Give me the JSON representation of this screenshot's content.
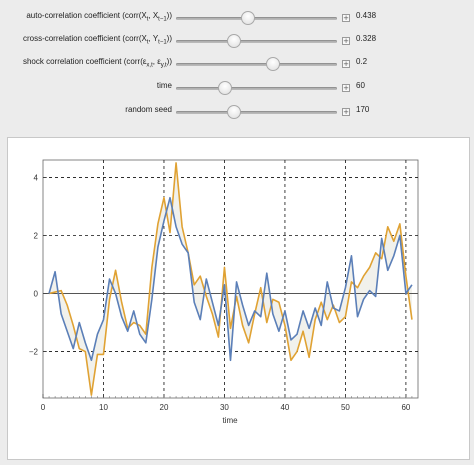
{
  "controls": [
    {
      "label_prefix": "auto-correlation coefficient (corr(X",
      "label_sub1": "t",
      "label_mid": ", X",
      "label_sub2": "t−1",
      "label_suffix": "))",
      "value": "0.438",
      "frac": 0.449
    },
    {
      "label_prefix": "cross-correlation coefficient (corr(X",
      "label_sub1": "t",
      "label_mid": ", Y",
      "label_sub2": "t−1",
      "label_suffix": "))",
      "value": "0.328",
      "frac": 0.363
    },
    {
      "label_prefix": "shock correlation coefficient (corr(ε",
      "label_sub1": "x,t",
      "label_mid": ", ε",
      "label_sub2": "y,t",
      "label_suffix": "))",
      "value": "0.2",
      "frac": 0.6
    },
    {
      "label_prefix": "time",
      "label_sub1": "",
      "label_mid": "",
      "label_sub2": "",
      "label_suffix": "",
      "value": "60",
      "frac": 0.306
    },
    {
      "label_prefix": "random seed",
      "label_sub1": "",
      "label_mid": "",
      "label_sub2": "",
      "label_suffix": "",
      "value": "170",
      "frac": 0.363
    }
  ],
  "plus_glyph": "+",
  "chart_data": {
    "type": "line",
    "xlabel": "time",
    "ylabel": "",
    "xlim": [
      0,
      62
    ],
    "ylim": [
      -3.6,
      4.6
    ],
    "xticks": [
      0,
      10,
      20,
      30,
      40,
      50,
      60
    ],
    "yticks": [
      -2,
      0,
      2,
      4
    ],
    "grid": "dashed at multiples of 10 (x) and 2 (y)",
    "fill_to_zero": true,
    "colors": {
      "x_series": "#5b7fb8",
      "y_series": "#e0a233",
      "fill": "#f1f1ec",
      "zero_line": "#555555"
    },
    "x": [
      1,
      2,
      3,
      4,
      5,
      6,
      7,
      8,
      9,
      10,
      11,
      12,
      13,
      14,
      15,
      16,
      17,
      18,
      19,
      20,
      21,
      22,
      23,
      24,
      25,
      26,
      27,
      28,
      29,
      30,
      31,
      32,
      33,
      34,
      35,
      36,
      37,
      38,
      39,
      40,
      41,
      42,
      43,
      44,
      45,
      46,
      47,
      48,
      49,
      50,
      51,
      52,
      53,
      54,
      55,
      56,
      57,
      58,
      59,
      60,
      61
    ],
    "series": [
      {
        "values": [
          0.0,
          0.75,
          -0.7,
          -1.3,
          -1.9,
          -1.0,
          -1.7,
          -2.3,
          -1.4,
          -0.9,
          0.5,
          0.0,
          -0.8,
          -1.3,
          -0.6,
          -1.4,
          -1.7,
          -0.2,
          1.6,
          2.5,
          3.3,
          2.3,
          1.7,
          1.4,
          -0.3,
          -0.9,
          0.5,
          -0.3,
          -1.1,
          0.3,
          -2.3,
          0.4,
          -0.4,
          -1.1,
          -0.6,
          -0.8,
          0.7,
          -0.7,
          -1.3,
          -0.6,
          -1.6,
          -1.4,
          -0.6,
          -1.2,
          -0.5,
          -1.1,
          0.4,
          -0.5,
          -0.6,
          0.2,
          1.3,
          -0.8,
          -0.2,
          0.1,
          -0.1,
          1.9,
          0.8,
          1.3,
          2.0,
          0.0,
          0.3
        ]
      },
      {
        "values": [
          0.0,
          0.05,
          0.1,
          -0.4,
          -1.1,
          -1.9,
          -2.0,
          -3.5,
          -2.1,
          -2.1,
          -0.2,
          0.8,
          -0.3,
          -1.2,
          -1.0,
          -1.1,
          -1.4,
          0.9,
          2.4,
          3.3,
          2.1,
          4.5,
          2.3,
          1.4,
          0.3,
          0.6,
          -0.1,
          -0.7,
          -1.5,
          0.9,
          -1.2,
          -0.1,
          -1.1,
          -1.7,
          -0.7,
          0.2,
          -1.0,
          -0.2,
          -0.3,
          -1.1,
          -2.3,
          -2.0,
          -1.3,
          -2.2,
          -0.9,
          -0.3,
          -0.9,
          -0.4,
          -1.0,
          -0.8,
          0.4,
          0.2,
          0.6,
          0.9,
          1.4,
          1.2,
          2.3,
          1.8,
          2.4,
          0.6,
          -0.9
        ]
      }
    ]
  }
}
